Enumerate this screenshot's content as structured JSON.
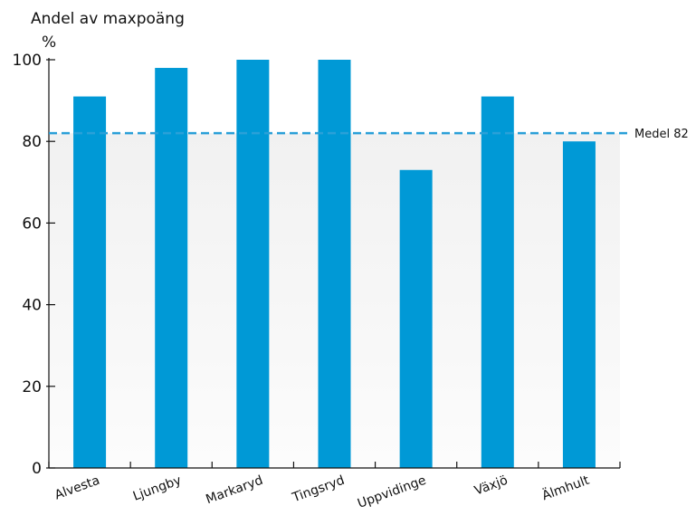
{
  "chart_data": {
    "type": "bar",
    "title": "Andel av maxpoäng",
    "ylabel": "%",
    "xlabel": "",
    "categories": [
      "Alvesta",
      "Ljungby",
      "Markaryd",
      "Tingsryd",
      "Uppvidinge",
      "Växjö",
      "Älmhult"
    ],
    "values": [
      91,
      98,
      100,
      100,
      73,
      91,
      80
    ],
    "ylim": [
      0,
      100
    ],
    "yticks": [
      0,
      20,
      40,
      60,
      80,
      100
    ],
    "reference_line": {
      "value": 82,
      "label": "Medel 82",
      "style": "dashed"
    },
    "grid": false,
    "legend": "none"
  },
  "colors": {
    "bar": "#0099d6",
    "reference": "#2aa0d8",
    "axis": "#111111",
    "band_top": "#f1f1f1",
    "band_bottom": "#fcfcfc"
  }
}
